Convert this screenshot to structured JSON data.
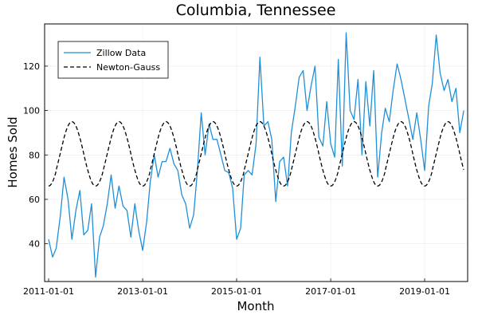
{
  "chart_data": {
    "type": "line",
    "title": "Columbia, Tennessee",
    "xlabel": "Month",
    "ylabel": "Homes Sold",
    "xlim": [
      "2010-12-01",
      "2019-12-01"
    ],
    "ylim": [
      23,
      139
    ],
    "x_ticks": [
      "2011-01-01",
      "2013-01-01",
      "2015-01-01",
      "2017-01-01",
      "2019-01-01"
    ],
    "y_ticks": [
      40,
      60,
      80,
      100,
      120
    ],
    "grid": true,
    "legend_position": "top-left",
    "colors": {
      "Zillow Data": "#1f8fd8",
      "Newton-Gauss": "#000000"
    },
    "series": [
      {
        "name": "Zillow Data",
        "style": "solid",
        "x": [
          "2011-01-01",
          "2011-02-01",
          "2011-03-01",
          "2011-04-01",
          "2011-05-01",
          "2011-06-01",
          "2011-07-01",
          "2011-08-01",
          "2011-09-01",
          "2011-10-01",
          "2011-11-01",
          "2011-12-01",
          "2012-01-01",
          "2012-02-01",
          "2012-03-01",
          "2012-04-01",
          "2012-05-01",
          "2012-06-01",
          "2012-07-01",
          "2012-08-01",
          "2012-09-01",
          "2012-10-01",
          "2012-11-01",
          "2012-12-01",
          "2013-01-01",
          "2013-02-01",
          "2013-03-01",
          "2013-04-01",
          "2013-05-01",
          "2013-06-01",
          "2013-07-01",
          "2013-08-01",
          "2013-09-01",
          "2013-10-01",
          "2013-11-01",
          "2013-12-01",
          "2014-01-01",
          "2014-02-01",
          "2014-03-01",
          "2014-04-01",
          "2014-05-01",
          "2014-06-01",
          "2014-07-01",
          "2014-08-01",
          "2014-09-01",
          "2014-10-01",
          "2014-11-01",
          "2014-12-01",
          "2015-01-01",
          "2015-02-01",
          "2015-03-01",
          "2015-04-01",
          "2015-05-01",
          "2015-06-01",
          "2015-07-01",
          "2015-08-01",
          "2015-09-01",
          "2015-10-01",
          "2015-11-01",
          "2015-12-01",
          "2016-01-01",
          "2016-02-01",
          "2016-03-01",
          "2016-04-01",
          "2016-05-01",
          "2016-06-01",
          "2016-07-01",
          "2016-08-01",
          "2016-09-01",
          "2016-10-01",
          "2016-11-01",
          "2016-12-01",
          "2017-01-01",
          "2017-02-01",
          "2017-03-01",
          "2017-04-01",
          "2017-05-01",
          "2017-06-01",
          "2017-07-01",
          "2017-08-01",
          "2017-09-01",
          "2017-10-01",
          "2017-11-01",
          "2017-12-01",
          "2018-01-01",
          "2018-02-01",
          "2018-03-01",
          "2018-04-01",
          "2018-05-01",
          "2018-06-01",
          "2018-07-01",
          "2018-08-01",
          "2018-09-01",
          "2018-10-01",
          "2018-11-01",
          "2018-12-01",
          "2019-01-01",
          "2019-02-01",
          "2019-03-01",
          "2019-04-01",
          "2019-05-01",
          "2019-06-01",
          "2019-07-01",
          "2019-08-01",
          "2019-09-01",
          "2019-10-01",
          "2019-11-01"
        ],
        "y": [
          42,
          34,
          38,
          52,
          70,
          60,
          42,
          55,
          64,
          44,
          46,
          58,
          25,
          43,
          48,
          58,
          71,
          56,
          66,
          57,
          55,
          43,
          58,
          46,
          37,
          50,
          68,
          80,
          70,
          77,
          77,
          83,
          76,
          73,
          62,
          58,
          47,
          53,
          72,
          99,
          80,
          94,
          87,
          87,
          80,
          73,
          72,
          65,
          42,
          47,
          71,
          73,
          71,
          85,
          124,
          93,
          95,
          87,
          59,
          77,
          79,
          66,
          90,
          102,
          115,
          118,
          100,
          111,
          120,
          88,
          84,
          104,
          85,
          79,
          123,
          75,
          135,
          100,
          96,
          114,
          80,
          113,
          93,
          118,
          70,
          90,
          101,
          95,
          109,
          121,
          114,
          105,
          96,
          87,
          99,
          87,
          73,
          102,
          112,
          134,
          117,
          109,
          114,
          104,
          110,
          90,
          100
        ]
      },
      {
        "name": "Newton-Gauss",
        "style": "dashed",
        "model": {
          "mean": 80.5,
          "amplitude": 14.5,
          "period_months": 12,
          "peak_month": 6
        },
        "x_range": [
          "2011-01-01",
          "2019-11-01"
        ]
      }
    ]
  }
}
